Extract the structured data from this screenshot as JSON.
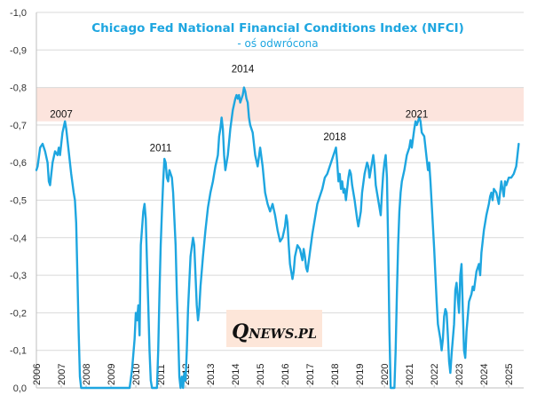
{
  "chart_data": {
    "type": "line",
    "title": "Chicago  Fed National  Financial  Conditions  Index (NFCI)",
    "subtitle": "- oś odwrócona",
    "xlabel": "",
    "ylabel": "",
    "y_axis_inverted": true,
    "ylim": [
      0.0,
      -1.0
    ],
    "y_ticks": [
      "-1,0",
      "-0,9",
      "-0,8",
      "-0,7",
      "-0,6",
      "-0,5",
      "-0,4",
      "-0,3",
      "-0,2",
      "-0,1",
      "0,0"
    ],
    "y_tick_values": [
      -1.0,
      -0.9,
      -0.8,
      -0.7,
      -0.6,
      -0.5,
      -0.4,
      -0.3,
      -0.2,
      -0.1,
      0.0
    ],
    "x_ticks": [
      "2006",
      "2007",
      "2008",
      "2009",
      "2010",
      "2011",
      "2012",
      "2013",
      "2014",
      "2015",
      "2016",
      "2017",
      "2018",
      "2019",
      "2020",
      "2021",
      "2022",
      "2023",
      "2024",
      "2025"
    ],
    "xlim": [
      2006.0,
      2025.6
    ],
    "highlight_band": {
      "from": -0.8,
      "to": -0.71,
      "color": "#fce4dd"
    },
    "annotations": [
      {
        "text": "2007",
        "x": 2007.0,
        "y": -0.72
      },
      {
        "text": "2011",
        "x": 2011.0,
        "y": -0.63
      },
      {
        "text": "2014",
        "x": 2014.3,
        "y": -0.84
      },
      {
        "text": "2018",
        "x": 2018.0,
        "y": -0.66
      },
      {
        "text": "2021",
        "x": 2021.3,
        "y": -0.72
      }
    ],
    "series": [
      {
        "name": "NFCI",
        "color": "#1ea6e0",
        "points": [
          [
            2006.0,
            -0.58
          ],
          [
            2006.05,
            -0.59
          ],
          [
            2006.15,
            -0.64
          ],
          [
            2006.25,
            -0.65
          ],
          [
            2006.35,
            -0.63
          ],
          [
            2006.45,
            -0.6
          ],
          [
            2006.5,
            -0.55
          ],
          [
            2006.55,
            -0.54
          ],
          [
            2006.65,
            -0.6
          ],
          [
            2006.75,
            -0.63
          ],
          [
            2006.85,
            -0.62
          ],
          [
            2006.9,
            -0.64
          ],
          [
            2006.95,
            -0.62
          ],
          [
            2007.0,
            -0.65
          ],
          [
            2007.05,
            -0.68
          ],
          [
            2007.15,
            -0.71
          ],
          [
            2007.2,
            -0.69
          ],
          [
            2007.3,
            -0.63
          ],
          [
            2007.4,
            -0.57
          ],
          [
            2007.5,
            -0.52
          ],
          [
            2007.55,
            -0.5
          ],
          [
            2007.6,
            -0.44
          ],
          [
            2007.65,
            -0.3
          ],
          [
            2007.7,
            -0.15
          ],
          [
            2007.75,
            -0.03
          ],
          [
            2007.8,
            0.0
          ],
          [
            2009.75,
            0.0
          ],
          [
            2009.85,
            -0.05
          ],
          [
            2009.95,
            -0.13
          ],
          [
            2010.0,
            -0.2
          ],
          [
            2010.05,
            -0.18
          ],
          [
            2010.1,
            -0.22
          ],
          [
            2010.15,
            -0.14
          ],
          [
            2010.2,
            -0.38
          ],
          [
            2010.3,
            -0.47
          ],
          [
            2010.35,
            -0.49
          ],
          [
            2010.4,
            -0.45
          ],
          [
            2010.45,
            -0.33
          ],
          [
            2010.5,
            -0.22
          ],
          [
            2010.55,
            -0.1
          ],
          [
            2010.6,
            -0.02
          ],
          [
            2010.65,
            0.0
          ],
          [
            2010.85,
            0.0
          ],
          [
            2010.9,
            -0.1
          ],
          [
            2010.95,
            -0.25
          ],
          [
            2011.0,
            -0.38
          ],
          [
            2011.05,
            -0.47
          ],
          [
            2011.1,
            -0.55
          ],
          [
            2011.15,
            -0.61
          ],
          [
            2011.2,
            -0.6
          ],
          [
            2011.25,
            -0.56
          ],
          [
            2011.3,
            -0.55
          ],
          [
            2011.35,
            -0.58
          ],
          [
            2011.4,
            -0.57
          ],
          [
            2011.45,
            -0.56
          ],
          [
            2011.5,
            -0.52
          ],
          [
            2011.55,
            -0.45
          ],
          [
            2011.6,
            -0.38
          ],
          [
            2011.65,
            -0.25
          ],
          [
            2011.7,
            -0.15
          ],
          [
            2011.75,
            -0.03
          ],
          [
            2011.8,
            0.0
          ],
          [
            2011.85,
            -0.03
          ],
          [
            2011.9,
            0.0
          ],
          [
            2011.95,
            -0.04
          ],
          [
            2012.0,
            -0.02
          ],
          [
            2012.05,
            -0.1
          ],
          [
            2012.1,
            -0.21
          ],
          [
            2012.15,
            -0.28
          ],
          [
            2012.2,
            -0.35
          ],
          [
            2012.3,
            -0.4
          ],
          [
            2012.35,
            -0.38
          ],
          [
            2012.4,
            -0.3
          ],
          [
            2012.45,
            -0.22
          ],
          [
            2012.5,
            -0.18
          ],
          [
            2012.55,
            -0.21
          ],
          [
            2012.6,
            -0.27
          ],
          [
            2012.7,
            -0.35
          ],
          [
            2012.8,
            -0.42
          ],
          [
            2012.9,
            -0.48
          ],
          [
            2013.0,
            -0.52
          ],
          [
            2013.1,
            -0.55
          ],
          [
            2013.2,
            -0.59
          ],
          [
            2013.3,
            -0.62
          ],
          [
            2013.35,
            -0.67
          ],
          [
            2013.4,
            -0.69
          ],
          [
            2013.45,
            -0.72
          ],
          [
            2013.5,
            -0.69
          ],
          [
            2013.55,
            -0.62
          ],
          [
            2013.6,
            -0.58
          ],
          [
            2013.65,
            -0.6
          ],
          [
            2013.7,
            -0.62
          ],
          [
            2013.8,
            -0.69
          ],
          [
            2013.9,
            -0.74
          ],
          [
            2014.0,
            -0.77
          ],
          [
            2014.05,
            -0.78
          ],
          [
            2014.1,
            -0.77
          ],
          [
            2014.15,
            -0.78
          ],
          [
            2014.2,
            -0.76
          ],
          [
            2014.3,
            -0.78
          ],
          [
            2014.35,
            -0.8
          ],
          [
            2014.4,
            -0.79
          ],
          [
            2014.45,
            -0.77
          ],
          [
            2014.5,
            -0.76
          ],
          [
            2014.55,
            -0.72
          ],
          [
            2014.6,
            -0.7
          ],
          [
            2014.7,
            -0.68
          ],
          [
            2014.8,
            -0.62
          ],
          [
            2014.9,
            -0.59
          ],
          [
            2015.0,
            -0.64
          ],
          [
            2015.1,
            -0.59
          ],
          [
            2015.2,
            -0.52
          ],
          [
            2015.3,
            -0.49
          ],
          [
            2015.4,
            -0.47
          ],
          [
            2015.5,
            -0.49
          ],
          [
            2015.6,
            -0.46
          ],
          [
            2015.7,
            -0.42
          ],
          [
            2015.8,
            -0.39
          ],
          [
            2015.9,
            -0.4
          ],
          [
            2016.0,
            -0.43
          ],
          [
            2016.05,
            -0.46
          ],
          [
            2016.1,
            -0.44
          ],
          [
            2016.15,
            -0.38
          ],
          [
            2016.2,
            -0.33
          ],
          [
            2016.3,
            -0.29
          ],
          [
            2016.35,
            -0.31
          ],
          [
            2016.4,
            -0.35
          ],
          [
            2016.5,
            -0.38
          ],
          [
            2016.6,
            -0.37
          ],
          [
            2016.7,
            -0.34
          ],
          [
            2016.75,
            -0.37
          ],
          [
            2016.8,
            -0.35
          ],
          [
            2016.85,
            -0.32
          ],
          [
            2016.9,
            -0.31
          ],
          [
            2017.0,
            -0.36
          ],
          [
            2017.1,
            -0.41
          ],
          [
            2017.2,
            -0.45
          ],
          [
            2017.3,
            -0.49
          ],
          [
            2017.4,
            -0.51
          ],
          [
            2017.5,
            -0.53
          ],
          [
            2017.6,
            -0.56
          ],
          [
            2017.7,
            -0.57
          ],
          [
            2017.8,
            -0.59
          ],
          [
            2017.9,
            -0.61
          ],
          [
            2018.0,
            -0.63
          ],
          [
            2018.05,
            -0.64
          ],
          [
            2018.1,
            -0.6
          ],
          [
            2018.15,
            -0.55
          ],
          [
            2018.2,
            -0.57
          ],
          [
            2018.25,
            -0.53
          ],
          [
            2018.3,
            -0.55
          ],
          [
            2018.35,
            -0.52
          ],
          [
            2018.4,
            -0.53
          ],
          [
            2018.45,
            -0.5
          ],
          [
            2018.5,
            -0.53
          ],
          [
            2018.55,
            -0.56
          ],
          [
            2018.6,
            -0.58
          ],
          [
            2018.65,
            -0.57
          ],
          [
            2018.7,
            -0.54
          ],
          [
            2018.8,
            -0.5
          ],
          [
            2018.9,
            -0.45
          ],
          [
            2018.95,
            -0.43
          ],
          [
            2019.0,
            -0.45
          ],
          [
            2019.05,
            -0.47
          ],
          [
            2019.1,
            -0.52
          ],
          [
            2019.2,
            -0.57
          ],
          [
            2019.3,
            -0.6
          ],
          [
            2019.35,
            -0.59
          ],
          [
            2019.4,
            -0.56
          ],
          [
            2019.5,
            -0.6
          ],
          [
            2019.55,
            -0.62
          ],
          [
            2019.6,
            -0.59
          ],
          [
            2019.65,
            -0.54
          ],
          [
            2019.7,
            -0.52
          ],
          [
            2019.75,
            -0.5
          ],
          [
            2019.8,
            -0.48
          ],
          [
            2019.85,
            -0.46
          ],
          [
            2019.9,
            -0.52
          ],
          [
            2019.95,
            -0.57
          ],
          [
            2020.0,
            -0.6
          ],
          [
            2020.05,
            -0.62
          ],
          [
            2020.1,
            -0.56
          ],
          [
            2020.15,
            -0.38
          ],
          [
            2020.2,
            -0.15
          ],
          [
            2020.25,
            0.0
          ],
          [
            2020.4,
            0.0
          ],
          [
            2020.45,
            -0.1
          ],
          [
            2020.5,
            -0.25
          ],
          [
            2020.55,
            -0.38
          ],
          [
            2020.6,
            -0.47
          ],
          [
            2020.65,
            -0.52
          ],
          [
            2020.7,
            -0.55
          ],
          [
            2020.8,
            -0.58
          ],
          [
            2020.9,
            -0.62
          ],
          [
            2021.0,
            -0.64
          ],
          [
            2021.05,
            -0.66
          ],
          [
            2021.1,
            -0.64
          ],
          [
            2021.2,
            -0.69
          ],
          [
            2021.25,
            -0.71
          ],
          [
            2021.3,
            -0.7
          ],
          [
            2021.4,
            -0.72
          ],
          [
            2021.45,
            -0.71
          ],
          [
            2021.5,
            -0.68
          ],
          [
            2021.6,
            -0.67
          ],
          [
            2021.65,
            -0.64
          ],
          [
            2021.7,
            -0.61
          ],
          [
            2021.75,
            -0.58
          ],
          [
            2021.8,
            -0.6
          ],
          [
            2021.85,
            -0.55
          ],
          [
            2021.9,
            -0.49
          ],
          [
            2021.95,
            -0.43
          ],
          [
            2022.0,
            -0.37
          ],
          [
            2022.05,
            -0.3
          ],
          [
            2022.1,
            -0.23
          ],
          [
            2022.15,
            -0.17
          ],
          [
            2022.2,
            -0.15
          ],
          [
            2022.25,
            -0.13
          ],
          [
            2022.3,
            -0.1
          ],
          [
            2022.35,
            -0.13
          ],
          [
            2022.4,
            -0.19
          ],
          [
            2022.45,
            -0.21
          ],
          [
            2022.5,
            -0.2
          ],
          [
            2022.55,
            -0.14
          ],
          [
            2022.6,
            -0.07
          ],
          [
            2022.65,
            -0.04
          ],
          [
            2022.7,
            -0.09
          ],
          [
            2022.8,
            -0.17
          ],
          [
            2022.85,
            -0.26
          ],
          [
            2022.9,
            -0.28
          ],
          [
            2022.95,
            -0.24
          ],
          [
            2023.0,
            -0.2
          ],
          [
            2023.05,
            -0.3
          ],
          [
            2023.1,
            -0.33
          ],
          [
            2023.15,
            -0.21
          ],
          [
            2023.2,
            -0.1
          ],
          [
            2023.25,
            -0.08
          ],
          [
            2023.3,
            -0.15
          ],
          [
            2023.4,
            -0.23
          ],
          [
            2023.5,
            -0.25
          ],
          [
            2023.55,
            -0.27
          ],
          [
            2023.6,
            -0.26
          ],
          [
            2023.7,
            -0.31
          ],
          [
            2023.8,
            -0.33
          ],
          [
            2023.85,
            -0.3
          ],
          [
            2023.9,
            -0.36
          ],
          [
            2024.0,
            -0.42
          ],
          [
            2024.1,
            -0.46
          ],
          [
            2024.2,
            -0.49
          ],
          [
            2024.25,
            -0.51
          ],
          [
            2024.3,
            -0.52
          ],
          [
            2024.35,
            -0.5
          ],
          [
            2024.4,
            -0.53
          ],
          [
            2024.5,
            -0.52
          ],
          [
            2024.6,
            -0.49
          ],
          [
            2024.65,
            -0.52
          ],
          [
            2024.7,
            -0.55
          ],
          [
            2024.75,
            -0.53
          ],
          [
            2024.8,
            -0.51
          ],
          [
            2024.85,
            -0.55
          ],
          [
            2024.9,
            -0.54
          ],
          [
            2025.0,
            -0.56
          ],
          [
            2025.1,
            -0.56
          ],
          [
            2025.2,
            -0.57
          ],
          [
            2025.3,
            -0.59
          ],
          [
            2025.35,
            -0.62
          ],
          [
            2025.4,
            -0.65
          ]
        ]
      }
    ]
  },
  "logo": {
    "q": "Q",
    "rest": "NEWS.PL",
    "background": "#fde6d9"
  },
  "colors": {
    "line": "#1ea6e0",
    "title": "#1ea6e0",
    "band": "#fce4dd",
    "grid": "#d9d9d9",
    "axis": "#bfbfbf"
  }
}
